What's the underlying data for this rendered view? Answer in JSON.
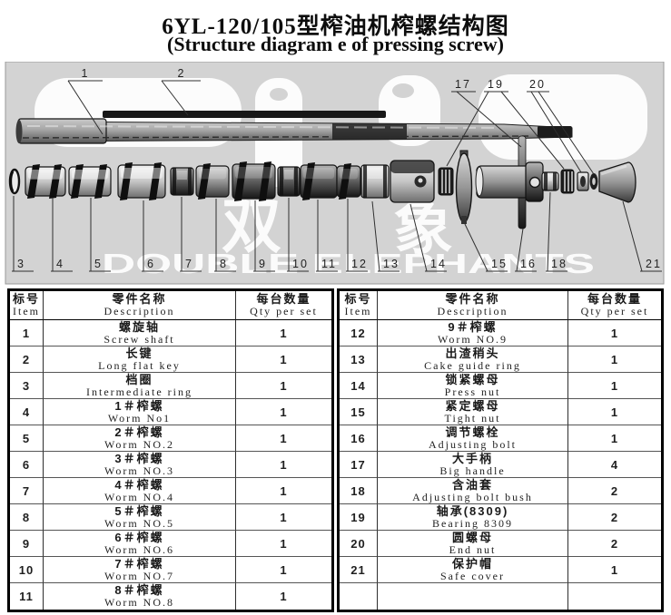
{
  "title": {
    "line1": "6YL-120/105型榨油机榨螺结构图",
    "line2": "(Structure diagram e of pressing screw)"
  },
  "watermark": {
    "cjk_left": "双",
    "cjk_right": "象",
    "latin": "DOUBLE ELEPHANTS"
  },
  "diagram": {
    "panel_color": "#d3d3d3",
    "callout_labels_top": [
      "1",
      "2",
      "17",
      "19",
      "20"
    ],
    "callout_labels_bottom": [
      "3",
      "4",
      "5",
      "6",
      "7",
      "8",
      "9",
      "10",
      "11",
      "12",
      "13",
      "14",
      "15",
      "16",
      "18",
      "21"
    ]
  },
  "table": {
    "headers": {
      "item_cn": "标号",
      "item_en": "Item",
      "desc_cn": "零件名称",
      "desc_en": "Description",
      "qty_cn": "每台数量",
      "qty_en": "Qty per set"
    },
    "left_rows": [
      {
        "item": "1",
        "cn": "螺旋轴",
        "en": "Screw shaft",
        "qty": "1"
      },
      {
        "item": "2",
        "cn": "长键",
        "en": "Long flat key",
        "qty": "1"
      },
      {
        "item": "3",
        "cn": "档圈",
        "en": "Intermediate ring",
        "qty": "1"
      },
      {
        "item": "4",
        "cn": "1＃榨螺",
        "en": "Worm No1",
        "qty": "1"
      },
      {
        "item": "5",
        "cn": "2＃榨螺",
        "en": "Worm NO.2",
        "qty": "1"
      },
      {
        "item": "6",
        "cn": "3＃榨螺",
        "en": "Worm NO.3",
        "qty": "1"
      },
      {
        "item": "7",
        "cn": "4＃榨螺",
        "en": "Worm NO.4",
        "qty": "1"
      },
      {
        "item": "8",
        "cn": "5＃榨螺",
        "en": "Worm NO.5",
        "qty": "1"
      },
      {
        "item": "9",
        "cn": "6＃榨螺",
        "en": "Worm NO.6",
        "qty": "1"
      },
      {
        "item": "10",
        "cn": "7＃榨螺",
        "en": "Worm NO.7",
        "qty": "1"
      },
      {
        "item": "11",
        "cn": "8＃榨螺",
        "en": "Worm NO.8",
        "qty": "1"
      }
    ],
    "right_rows": [
      {
        "item": "12",
        "cn": "9＃榨螺",
        "en": "Worm NO.9",
        "qty": "1"
      },
      {
        "item": "13",
        "cn": "出渣稍头",
        "en": "Cake guide ring",
        "qty": "1"
      },
      {
        "item": "14",
        "cn": "锁紧螺母",
        "en": "Press nut",
        "qty": "1"
      },
      {
        "item": "15",
        "cn": "紧定螺母",
        "en": "Tight nut",
        "qty": "1"
      },
      {
        "item": "16",
        "cn": "调节螺栓",
        "en": "Adjusting bolt",
        "qty": "1"
      },
      {
        "item": "17",
        "cn": "大手柄",
        "en": "Big handle",
        "qty": "4"
      },
      {
        "item": "18",
        "cn": "含油套",
        "en": "Adjusting bolt bush",
        "qty": "2"
      },
      {
        "item": "19",
        "cn": "轴承(8309)",
        "en": "Bearing 8309",
        "qty": "2"
      },
      {
        "item": "20",
        "cn": "圆螺母",
        "en": "End nut",
        "qty": "2"
      },
      {
        "item": "21",
        "cn": "保护帽",
        "en": "Safe cover",
        "qty": "1"
      }
    ]
  }
}
